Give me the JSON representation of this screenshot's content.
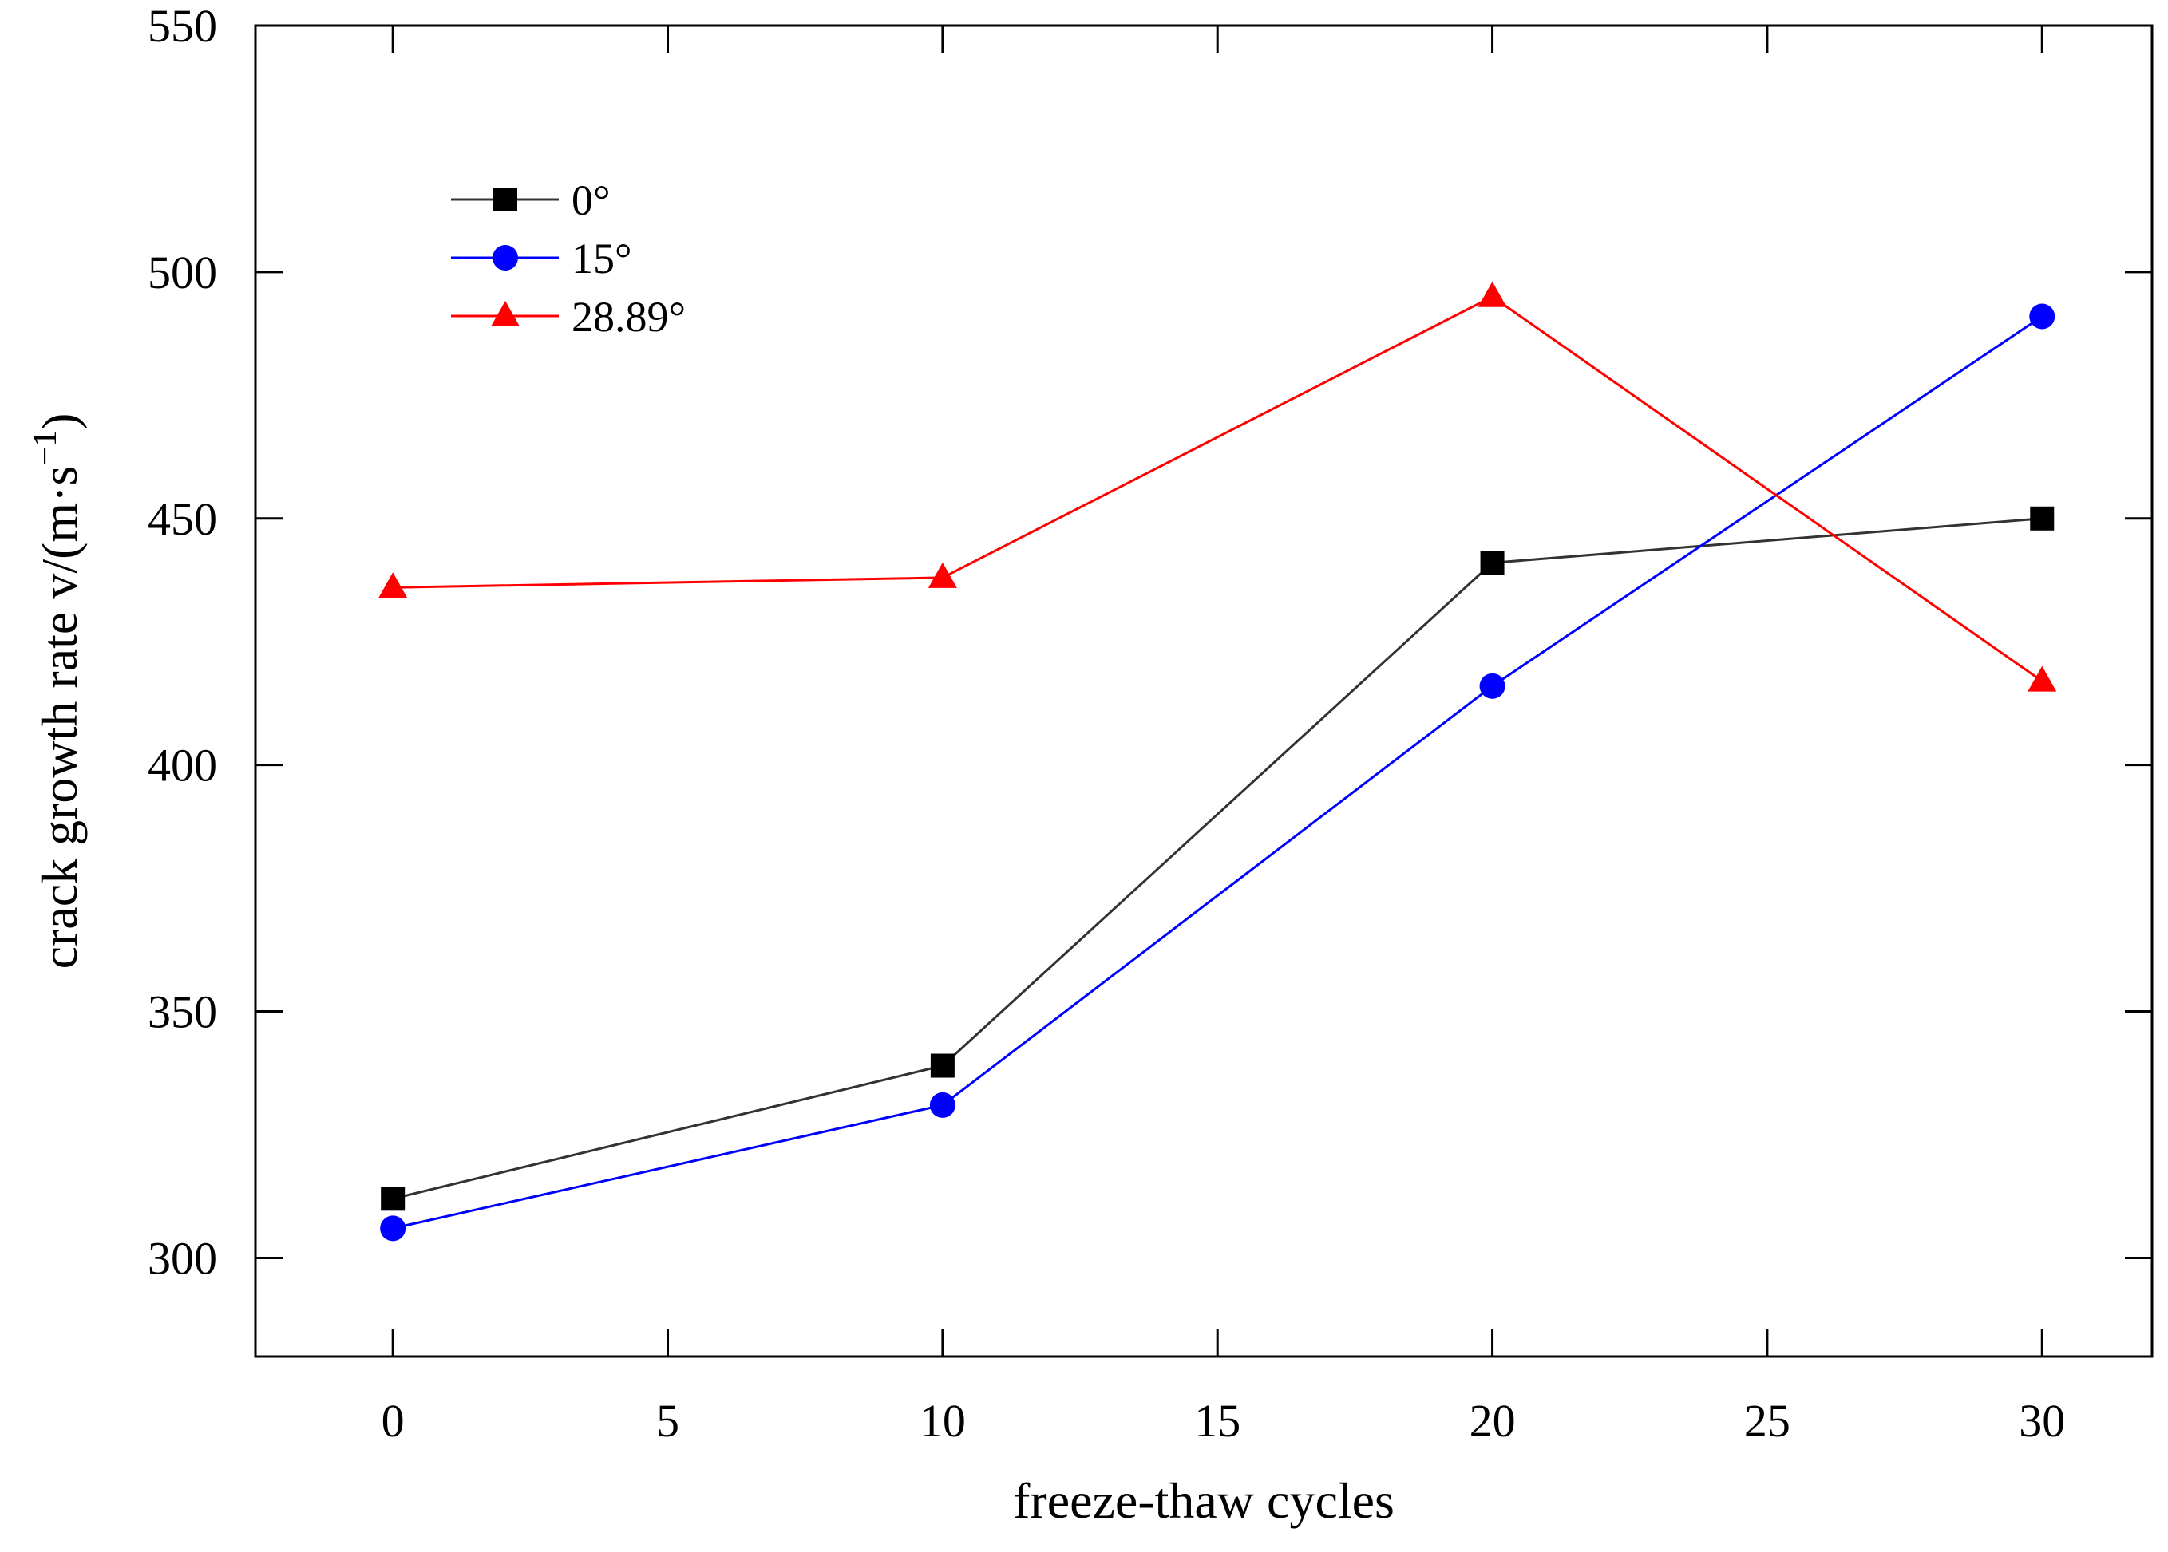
{
  "chart_data": {
    "type": "line",
    "title": "",
    "xlabel": "freeze-thaw cycles",
    "ylabel_main": "crack growth rate v/(m·s",
    "ylabel_sup": "−1",
    "ylabel_close": ")",
    "xlim": [
      -2.5,
      32
    ],
    "ylim": [
      280,
      550
    ],
    "xticks": [
      0,
      5,
      10,
      15,
      20,
      25,
      30
    ],
    "yticks": [
      300,
      350,
      400,
      450,
      500,
      550
    ],
    "legend_position": "top-left",
    "x": [
      0,
      10,
      20,
      30
    ],
    "series": [
      {
        "name": "0°",
        "color": "#000000",
        "line_color": "#333333",
        "marker": "square",
        "values": [
          312,
          339,
          441,
          450
        ]
      },
      {
        "name": "15°",
        "color": "#0000ff",
        "line_color": "#0000ff",
        "marker": "circle",
        "values": [
          306,
          331,
          416,
          491
        ]
      },
      {
        "name": "28.89°",
        "color": "#ff0000",
        "line_color": "#ff0000",
        "marker": "triangle",
        "values": [
          436,
          438,
          495,
          417
        ]
      }
    ]
  }
}
